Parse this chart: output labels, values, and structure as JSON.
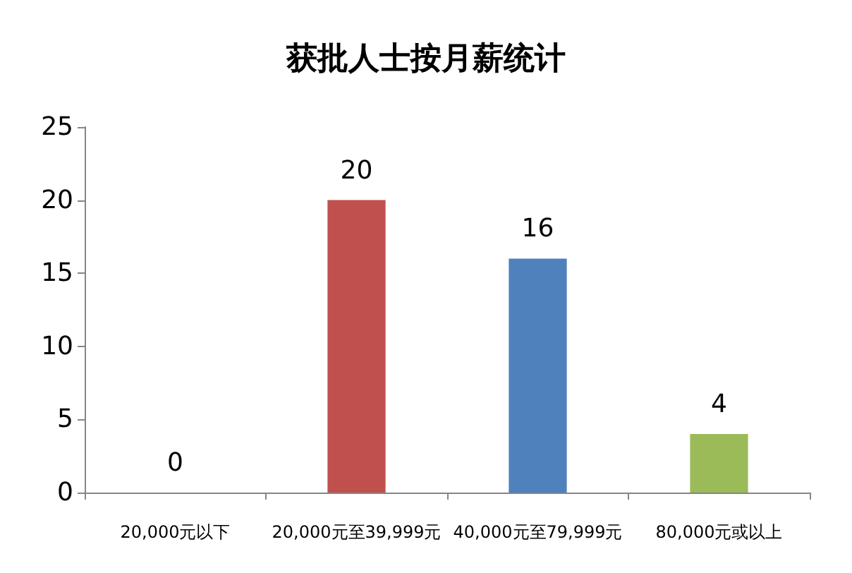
{
  "chart_data": {
    "type": "bar",
    "title": "获批人士按月薪统计",
    "categories": [
      "20,000元以下",
      "20,000元至39,999元",
      "40,000元至79,999元",
      "80,000元或以上"
    ],
    "values": [
      0,
      20,
      16,
      4
    ],
    "colors": [
      "#4f81bd",
      "#c0504d",
      "#4f81bd",
      "#9bbb59"
    ],
    "ylim": [
      0,
      25
    ],
    "yticks": [
      0,
      5,
      10,
      15,
      20,
      25
    ],
    "grid": false,
    "data_labels": true
  }
}
